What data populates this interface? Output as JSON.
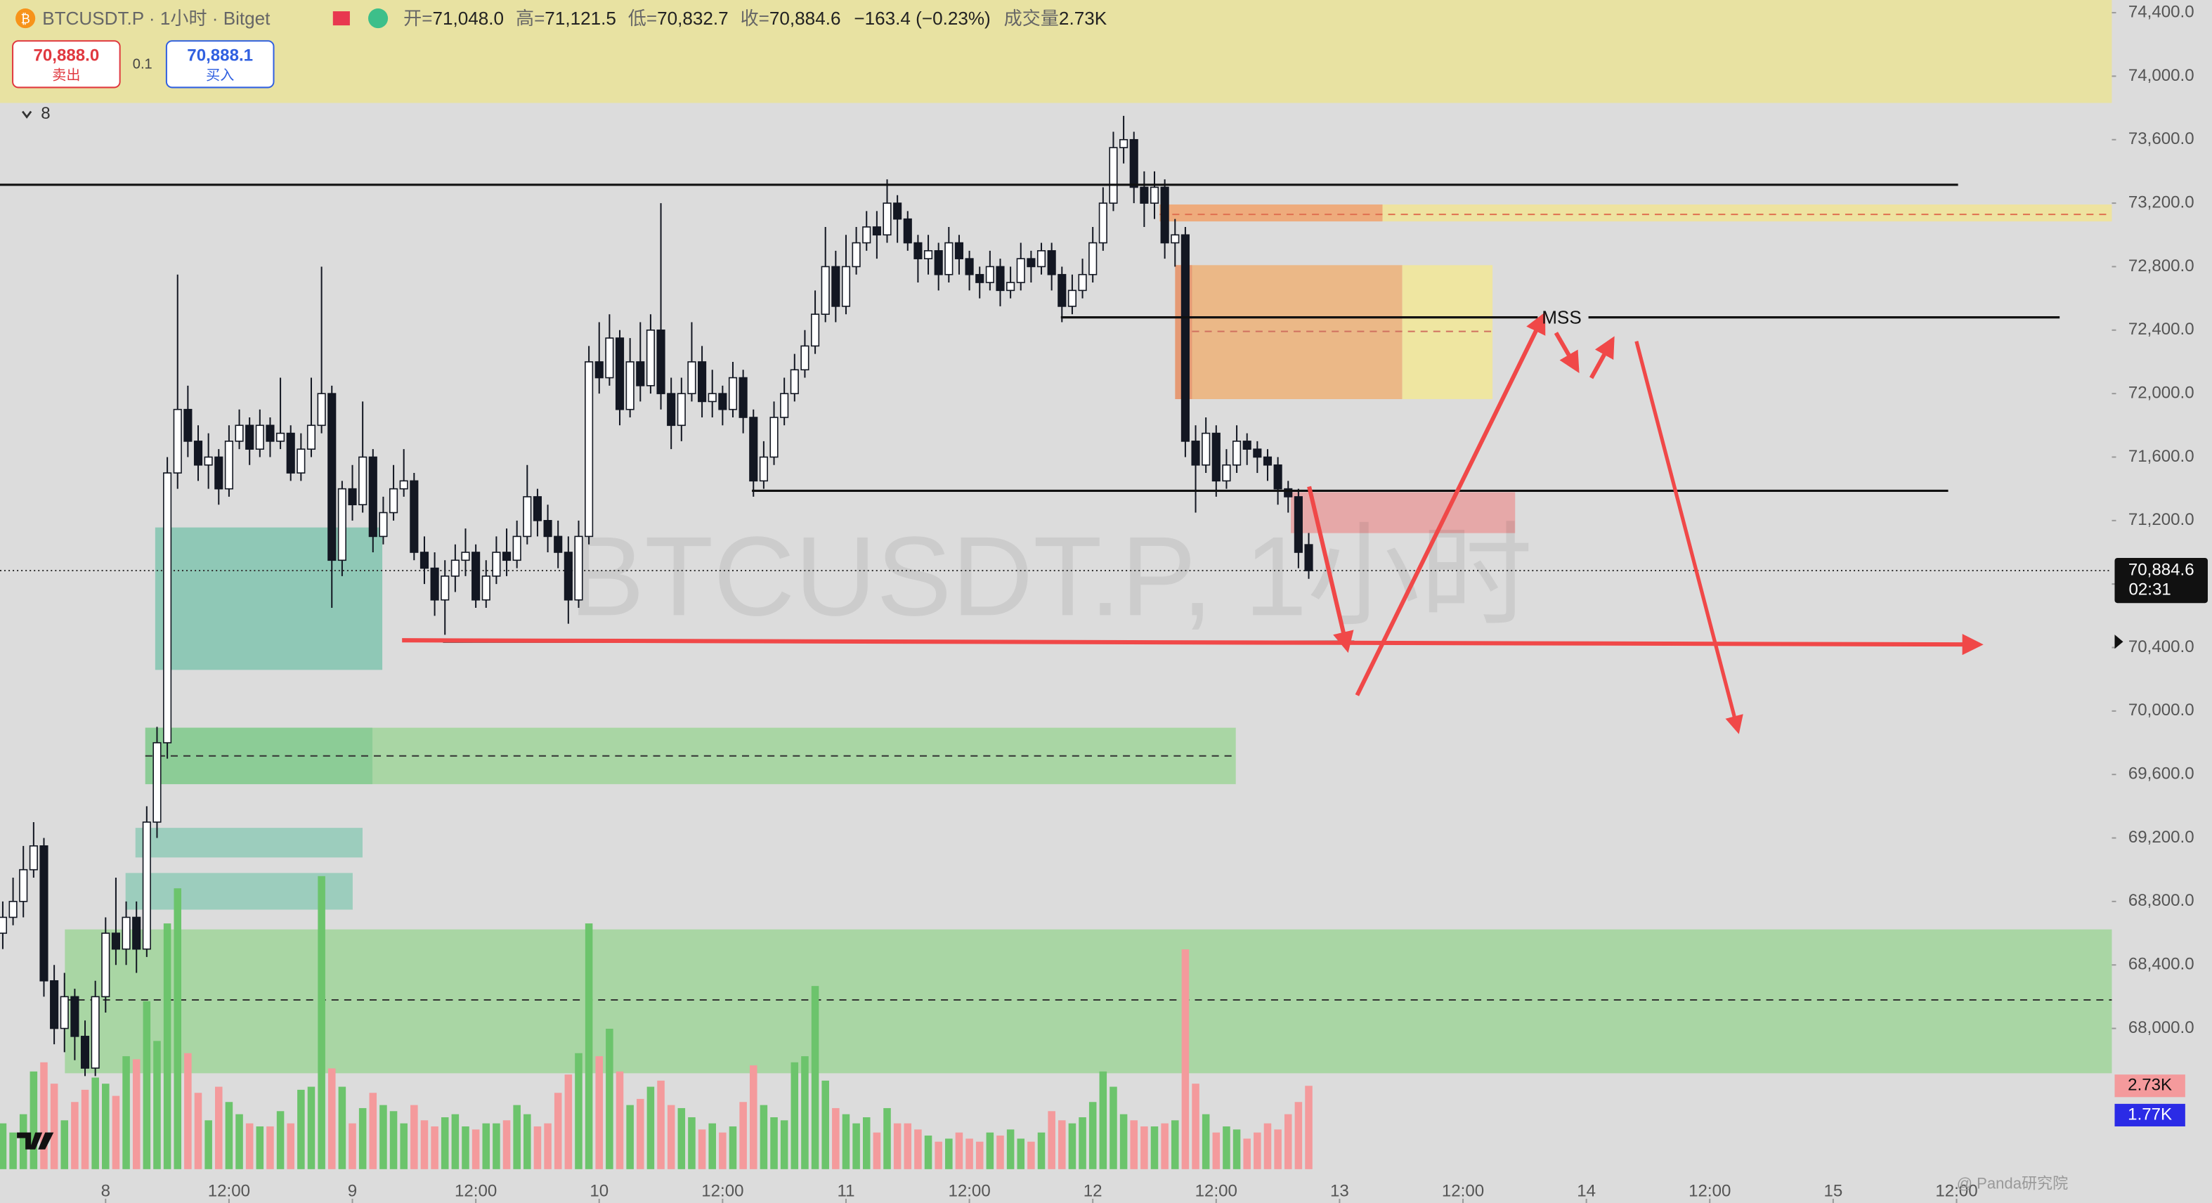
{
  "header": {
    "symbol": "BTCUSDT.P · 1小时 · Bitget",
    "ohlc": [
      {
        "label": "开=",
        "value": "71,048.0"
      },
      {
        "label": "高=",
        "value": "71,121.5"
      },
      {
        "label": "低=",
        "value": "70,832.7"
      },
      {
        "label": "收=",
        "value": "70,884.6"
      }
    ],
    "change": "−163.4 (−0.23%)",
    "volume_label": "成交量",
    "volume_value": "2.73K"
  },
  "trade": {
    "sell_price": "70,888.0",
    "sell_label": "卖出",
    "qty": "0.1",
    "buy_price": "70,888.1",
    "buy_label": "买入"
  },
  "indicator_count": "8",
  "watermark": "BTCUSDT.P, 1小时",
  "footer_watermark": "@ Panda研究院",
  "chart_data": {
    "type": "candlestick",
    "up_color": "#ffffff",
    "down_color": "#131722",
    "wick_color": "#131722",
    "open": [
      68600,
      68700,
      68800,
      69000,
      69150,
      68300,
      68000,
      68200,
      67950,
      67750,
      68200,
      68600,
      68500,
      68700,
      68500,
      69300,
      69800,
      71500,
      71900,
      71700,
      71550,
      71600,
      71400,
      71700,
      71800,
      71650,
      71800,
      71700,
      71750,
      71500,
      71650,
      71800,
      72000,
      70950,
      71400,
      71300,
      71600,
      71100,
      71250,
      71400,
      71450,
      71000,
      70900,
      70700,
      70850,
      70950,
      71000,
      70700,
      70850,
      71000,
      70950,
      71100,
      71350,
      71200,
      71100,
      71000,
      70700,
      71100,
      72200,
      72100,
      72350,
      71900,
      72200,
      72050,
      72400,
      72000,
      71800,
      72000,
      72200,
      71950,
      72000,
      71900,
      72100,
      71850,
      71450,
      71600,
      71850,
      72000,
      72150,
      72300,
      72500,
      72800,
      72550,
      72800,
      72950,
      73050,
      73000,
      73200,
      73100,
      72950,
      72850,
      72900,
      72750,
      72950,
      72850,
      72750,
      72700,
      72800,
      72650,
      72700,
      72850,
      72800,
      72900,
      72750,
      72550,
      72650,
      72750,
      72950,
      73200,
      73550,
      73600,
      73300,
      73200,
      73300,
      72950,
      73000,
      71700,
      71550,
      71750,
      71450,
      71550,
      71700,
      71650,
      71600,
      71550,
      71400,
      71350,
      71048
    ],
    "high": [
      68800,
      68950,
      69150,
      69300,
      69200,
      68400,
      68350,
      68250,
      68050,
      68300,
      68700,
      68950,
      68800,
      68800,
      69400,
      69900,
      71600,
      72750,
      72050,
      71800,
      71750,
      71650,
      71800,
      71900,
      71850,
      71900,
      71850,
      72100,
      71800,
      71750,
      72100,
      72800,
      72050,
      71450,
      71550,
      71950,
      71650,
      71350,
      71550,
      71650,
      71500,
      71100,
      71000,
      70950,
      71050,
      71150,
      71050,
      70950,
      71100,
      71150,
      71200,
      71550,
      71400,
      71300,
      71200,
      71100,
      71200,
      72300,
      72450,
      72500,
      72400,
      72350,
      72450,
      72500,
      73200,
      72100,
      72100,
      72450,
      72300,
      72150,
      72050,
      72200,
      72150,
      71900,
      71700,
      71950,
      72100,
      72250,
      72400,
      72650,
      73050,
      72900,
      73000,
      73050,
      73150,
      73150,
      73350,
      73250,
      73150,
      73000,
      73000,
      72950,
      73050,
      73000,
      72900,
      72800,
      72900,
      72850,
      72800,
      72950,
      72900,
      72950,
      72950,
      72800,
      72750,
      72850,
      73050,
      73300,
      73650,
      73750,
      73650,
      73400,
      73400,
      73350,
      73100,
      73050,
      71800,
      71850,
      71800,
      71650,
      71800,
      71750,
      71700,
      71650,
      71600,
      71450,
      71400,
      71121.5
    ],
    "low": [
      68500,
      68650,
      68700,
      68950,
      68200,
      67900,
      67850,
      67800,
      67700,
      67700,
      68100,
      68400,
      68400,
      68350,
      68450,
      69200,
      69700,
      71400,
      71600,
      71450,
      71400,
      71300,
      71350,
      71650,
      71550,
      71600,
      71600,
      71650,
      71450,
      71450,
      71600,
      71750,
      70650,
      70850,
      71200,
      71250,
      71000,
      71050,
      71200,
      71350,
      70950,
      70800,
      70600,
      70480,
      70750,
      70850,
      70650,
      70650,
      70800,
      70850,
      70900,
      71050,
      71100,
      71000,
      70900,
      70550,
      70650,
      71050,
      72000,
      72050,
      71800,
      71850,
      71950,
      72000,
      71900,
      71650,
      71700,
      71950,
      71850,
      71850,
      71800,
      71850,
      71750,
      71350,
      71400,
      71550,
      71800,
      71950,
      72100,
      72250,
      72450,
      72450,
      72500,
      72750,
      72900,
      72850,
      72950,
      72950,
      72900,
      72700,
      72750,
      72650,
      72700,
      72750,
      72650,
      72600,
      72650,
      72550,
      72600,
      72650,
      72700,
      72750,
      72650,
      72450,
      72500,
      72600,
      72700,
      72900,
      73150,
      73450,
      73200,
      73050,
      73100,
      72850,
      72800,
      71600,
      71250,
      71500,
      71350,
      71400,
      71500,
      71550,
      71500,
      71450,
      71300,
      71250,
      70900,
      70832.7
    ],
    "close": [
      68700,
      68800,
      69000,
      69150,
      68300,
      68000,
      68200,
      67950,
      67750,
      68200,
      68600,
      68500,
      68700,
      68500,
      69300,
      69800,
      71500,
      71900,
      71700,
      71550,
      71600,
      71400,
      71700,
      71800,
      71650,
      71800,
      71700,
      71750,
      71500,
      71650,
      71800,
      72000,
      70950,
      71400,
      71300,
      71600,
      71100,
      71250,
      71400,
      71450,
      71000,
      70900,
      70700,
      70850,
      70950,
      71000,
      70700,
      70850,
      71000,
      70950,
      71100,
      71350,
      71200,
      71100,
      71000,
      70700,
      71100,
      72200,
      72100,
      72350,
      71900,
      72200,
      72050,
      72400,
      72000,
      71800,
      72000,
      72200,
      71950,
      72000,
      71900,
      72100,
      71850,
      71450,
      71600,
      71850,
      72000,
      72150,
      72300,
      72500,
      72800,
      72550,
      72800,
      72950,
      73050,
      73000,
      73200,
      73100,
      72950,
      72850,
      72900,
      72750,
      72950,
      72850,
      72750,
      72700,
      72800,
      72650,
      72700,
      72850,
      72800,
      72900,
      72750,
      72550,
      72650,
      72750,
      72950,
      73200,
      73550,
      73600,
      73300,
      73200,
      73300,
      72950,
      73000,
      71700,
      71550,
      71750,
      71450,
      71550,
      71700,
      71650,
      71600,
      71550,
      71400,
      71350,
      71000,
      70884.6
    ],
    "xlim": [
      -0.27,
      205.1
    ],
    "xticks": [
      {
        "value": 10,
        "label": "8"
      },
      {
        "value": 22,
        "label": "12:00"
      },
      {
        "value": 34,
        "label": "9"
      },
      {
        "value": 46,
        "label": "12:00"
      },
      {
        "value": 58,
        "label": "10"
      },
      {
        "value": 70,
        "label": "12:00"
      },
      {
        "value": 82,
        "label": "11"
      },
      {
        "value": 94,
        "label": "12:00"
      },
      {
        "value": 106,
        "label": "12"
      },
      {
        "value": 118,
        "label": "12:00"
      },
      {
        "value": 130,
        "label": "13"
      },
      {
        "value": 142,
        "label": "12:00"
      },
      {
        "value": 154,
        "label": "14"
      },
      {
        "value": 166,
        "label": "12:00"
      },
      {
        "value": 178,
        "label": "15"
      },
      {
        "value": 190,
        "label": "12:00"
      }
    ],
    "ylim": [
      66900,
      74480
    ],
    "yticks": [
      {
        "value": 68000,
        "label": "68,000.0"
      },
      {
        "value": 68400,
        "label": "68,400.0"
      },
      {
        "value": 68800,
        "label": "68,800.0"
      },
      {
        "value": 69200,
        "label": "69,200.0"
      },
      {
        "value": 69600,
        "label": "69,600.0"
      },
      {
        "value": 70000,
        "label": "70,000.0"
      },
      {
        "value": 70400,
        "label": "70,400.0"
      },
      {
        "value": 70800,
        "label": "70,800.0"
      },
      {
        "value": 71200,
        "label": "71,200.0"
      },
      {
        "value": 71600,
        "label": "71,600.0"
      },
      {
        "value": 72000,
        "label": "72,000.0"
      },
      {
        "value": 72400,
        "label": "72,400.0"
      },
      {
        "value": 72800,
        "label": "72,800.0"
      },
      {
        "value": 73200,
        "label": "73,200.0"
      },
      {
        "value": 73600,
        "label": "73,600.0"
      },
      {
        "value": 74000,
        "label": "74,000.0"
      },
      {
        "value": 74400,
        "label": "74,400.0"
      }
    ],
    "last_price": {
      "value": 70884.6,
      "label": "70,884.6"
    },
    "countdown": "02:31",
    "annotation": "MSS",
    "volume": {
      "up_color": "#6cc46c",
      "down_color": "#f49a9c",
      "ylim": [
        0,
        15200
      ],
      "values": [
        1500,
        1200,
        1800,
        3200,
        3500,
        2800,
        1600,
        2200,
        2600,
        3000,
        2800,
        2400,
        3700,
        3600,
        5500,
        4200,
        8050,
        9200,
        3800,
        2500,
        1600,
        2700,
        2200,
        1800,
        1500,
        1400,
        1400,
        1900,
        1500,
        2600,
        2700,
        9600,
        3300,
        2700,
        1500,
        2000,
        2500,
        2100,
        1900,
        1500,
        2100,
        1600,
        1400,
        1700,
        1800,
        1400,
        1300,
        1500,
        1500,
        1600,
        2100,
        1800,
        1400,
        1500,
        2500,
        3100,
        3800,
        8050,
        3700,
        4600,
        3200,
        2100,
        2300,
        2700,
        2900,
        2100,
        2000,
        1700,
        1300,
        1500,
        1200,
        1400,
        2200,
        3400,
        2100,
        1700,
        1600,
        3500,
        3700,
        6000,
        2900,
        2000,
        1800,
        1500,
        1700,
        1200,
        2000,
        1500,
        1500,
        1300,
        1100,
        900,
        1000,
        1200,
        1000,
        900,
        1200,
        1100,
        1300,
        1000,
        900,
        1200,
        1900,
        1600,
        1500,
        1700,
        2200,
        3200,
        2700,
        1800,
        1600,
        1400,
        1400,
        1500,
        1600,
        7200,
        2800,
        1800,
        1200,
        1400,
        1300,
        1000,
        1200,
        1500,
        1300,
        1800,
        2200,
        2730
      ],
      "last_label": {
        "value": 2730,
        "label": "2.73K"
      },
      "ma_label": {
        "value": 1770,
        "label": "1.77K"
      }
    }
  }
}
